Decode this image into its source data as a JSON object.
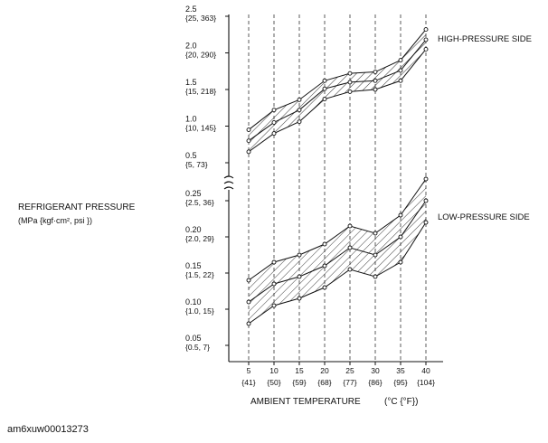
{
  "chart_data": {
    "type": "area",
    "xlabel": "AMBIENT TEMPERATURE",
    "xunit": "(°C {°F})",
    "ylabel": "REFRIGERANT PRESSURE",
    "yunit": "(MPa {kgf·cm², psi })",
    "x": [
      5,
      10,
      15,
      20,
      25,
      30,
      35,
      40
    ],
    "x_sub": [
      "{41}",
      "{50}",
      "{59}",
      "{68}",
      "{77}",
      "{86}",
      "{95}",
      "{104}"
    ],
    "high_yticks": [
      {
        "value": 0.5,
        "label": "0.5",
        "sub": "{5, 73}"
      },
      {
        "value": 1.0,
        "label": "1.0",
        "sub": "{10, 145}"
      },
      {
        "value": 1.5,
        "label": "1.5",
        "sub": "{15, 218}"
      },
      {
        "value": 2.0,
        "label": "2.0",
        "sub": "{20, 290}"
      },
      {
        "value": 2.5,
        "label": "2.5",
        "sub": "{25, 363}"
      }
    ],
    "low_yticks": [
      {
        "value": 0.05,
        "label": "0.05",
        "sub": "{0.5, 7}"
      },
      {
        "value": 0.1,
        "label": "0.10",
        "sub": "{1.0, 15}"
      },
      {
        "value": 0.15,
        "label": "0.15",
        "sub": "{1.5, 22}"
      },
      {
        "value": 0.2,
        "label": "0.20",
        "sub": "{2.0, 29}"
      },
      {
        "value": 0.25,
        "label": "0.25",
        "sub": "{2.5, 36}"
      }
    ],
    "high_ylim": [
      0.45,
      2.55
    ],
    "low_ylim": [
      0.0,
      0.29
    ],
    "bands": [
      {
        "name": "HIGH-PRESSURE SIDE",
        "upper": [
          0.95,
          1.22,
          1.36,
          1.62,
          1.72,
          1.74,
          1.9,
          2.32
        ],
        "middle": [
          0.8,
          1.05,
          1.22,
          1.51,
          1.6,
          1.62,
          1.76,
          2.18
        ],
        "lower": [
          0.65,
          0.9,
          1.06,
          1.37,
          1.47,
          1.5,
          1.62,
          2.05
        ]
      },
      {
        "name": "LOW-PRESSURE SIDE",
        "upper": [
          0.14,
          0.165,
          0.175,
          0.19,
          0.215,
          0.205,
          0.23,
          0.28
        ],
        "middle": [
          0.11,
          0.135,
          0.145,
          0.16,
          0.185,
          0.175,
          0.2,
          0.25
        ],
        "lower": [
          0.08,
          0.105,
          0.115,
          0.13,
          0.155,
          0.145,
          0.165,
          0.22
        ]
      }
    ]
  },
  "figure_code": "am6xuw00013273"
}
